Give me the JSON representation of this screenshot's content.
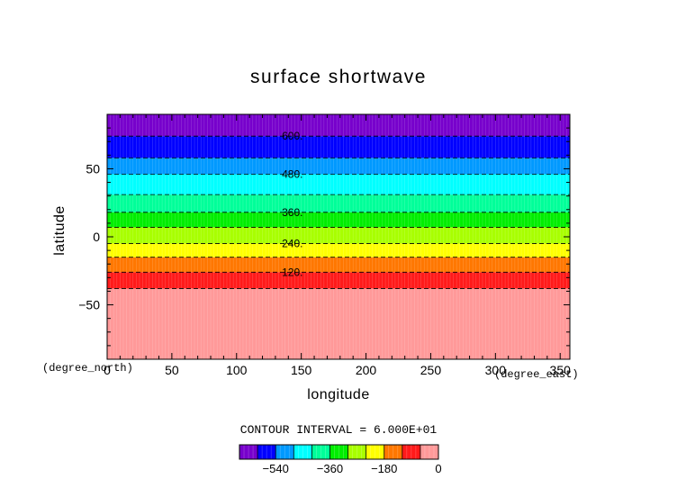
{
  "chart_data": {
    "type": "heatmap",
    "title": "surface shortwave",
    "xlabel": "longitude",
    "ylabel": "latitude",
    "x_unit": "(degree_east)",
    "y_unit": "(degree_north)",
    "xlim": [
      0,
      357.5
    ],
    "ylim": [
      -90,
      90
    ],
    "xticks": [
      0,
      50,
      100,
      150,
      200,
      250,
      300,
      350
    ],
    "yticks": [
      -50,
      0,
      50
    ],
    "xtick_labels": [
      "0",
      "50",
      "100",
      "150",
      "200",
      "250",
      "300",
      "350"
    ],
    "ytick_labels": [
      "−50",
      "0",
      "50"
    ],
    "bands": [
      {
        "lat_from": -90,
        "lat_to": -38,
        "color": "#ff9999"
      },
      {
        "lat_from": -38,
        "lat_to": -26,
        "color": "#ff1a1a"
      },
      {
        "lat_from": -26,
        "lat_to": -15,
        "color": "#ff7700"
      },
      {
        "lat_from": -15,
        "lat_to": -5,
        "color": "#ffff00"
      },
      {
        "lat_from": -5,
        "lat_to": 7,
        "color": "#a8ff00"
      },
      {
        "lat_from": 7,
        "lat_to": 18,
        "color": "#00ee00"
      },
      {
        "lat_from": 18,
        "lat_to": 31,
        "color": "#00ff99"
      },
      {
        "lat_from": 31,
        "lat_to": 46,
        "color": "#00ffff"
      },
      {
        "lat_from": 46,
        "lat_to": 58,
        "color": "#0099ff"
      },
      {
        "lat_from": 58,
        "lat_to": 74,
        "color": "#0000ff"
      },
      {
        "lat_from": 74,
        "lat_to": 90,
        "color": "#7700cc"
      }
    ],
    "contours": [
      {
        "lat": -38,
        "label": ""
      },
      {
        "lat": -26,
        "label": "120."
      },
      {
        "lat": -15,
        "label": ""
      },
      {
        "lat": -5,
        "label": "240."
      },
      {
        "lat": 7,
        "label": ""
      },
      {
        "lat": 18,
        "label": "360."
      },
      {
        "lat": 31,
        "label": ""
      },
      {
        "lat": 46,
        "label": "480."
      },
      {
        "lat": 58,
        "label": ""
      },
      {
        "lat": 74,
        "label": "600."
      }
    ],
    "contour_label_lon": 135,
    "contour_interval_text": "CONTOUR INTERVAL = 6.000E+01",
    "colorbar": {
      "colors": [
        "#7700cc",
        "#0000ff",
        "#0099ff",
        "#00ffff",
        "#00ff99",
        "#00ee00",
        "#a8ff00",
        "#ffff00",
        "#ff7700",
        "#ff1a1a",
        "#ff9999"
      ],
      "ticks": [
        -540,
        -360,
        -180,
        0
      ],
      "tick_labels": [
        "−540",
        "−360",
        "−180",
        "0"
      ],
      "range": [
        -660,
        0
      ]
    }
  }
}
